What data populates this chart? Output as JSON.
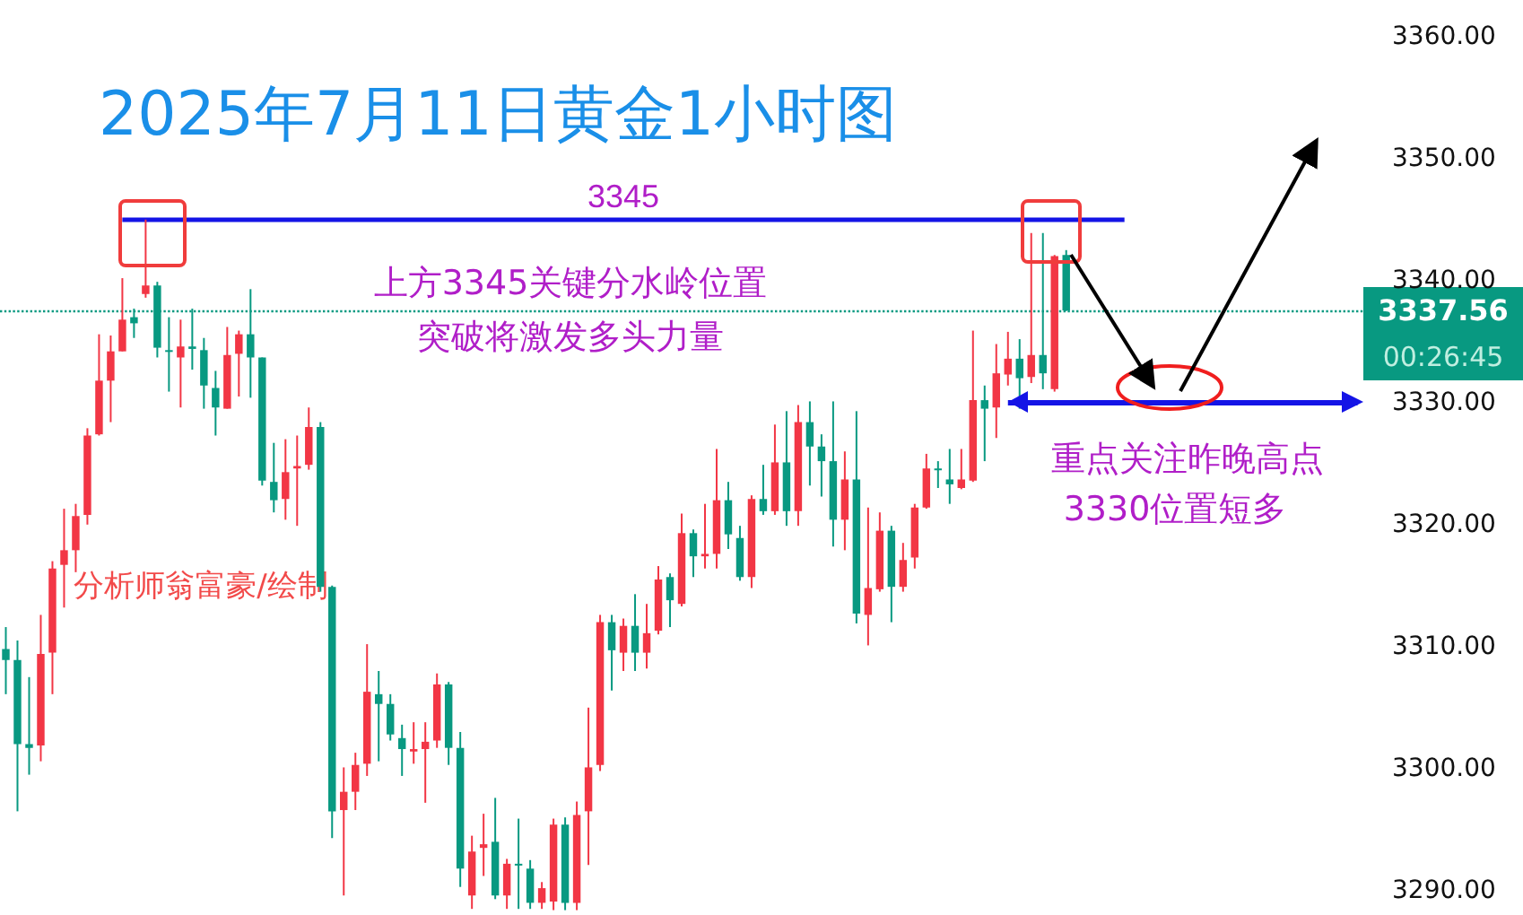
{
  "chart_data": {
    "type": "candlestick",
    "title": "2025年7月11日黄金1小时图",
    "categories": [
      null,
      null,
      null,
      null,
      null,
      null,
      null,
      null,
      null,
      null,
      null,
      null,
      null,
      null,
      null,
      null,
      null,
      null,
      null,
      null,
      null,
      null,
      null,
      null,
      null,
      null,
      null,
      null,
      null,
      null,
      null,
      null,
      null,
      null,
      null,
      null,
      null,
      null,
      null,
      null,
      null,
      null,
      null,
      null,
      null,
      null,
      null,
      null,
      null,
      null,
      null,
      null,
      null,
      null,
      null,
      null,
      null,
      null,
      null,
      null,
      null,
      null,
      null,
      null,
      null,
      null,
      null,
      null,
      null,
      null,
      null,
      null,
      null,
      null,
      null,
      null,
      null,
      null,
      null,
      null,
      null,
      null,
      null,
      null,
      null,
      null,
      null,
      null,
      null,
      null,
      null,
      null,
      null,
      null,
      null,
      null,
      null,
      null,
      null,
      null,
      null,
      null,
      null,
      null,
      null,
      null,
      null,
      null,
      null,
      null,
      null,
      null,
      null,
      null,
      null,
      null,
      null
    ],
    "ohlc": [
      [
        3309.8,
        3311.6,
        3306.1,
        3308.9
      ],
      [
        3308.9,
        3310.5,
        3296.5,
        3302.0
      ],
      [
        3302.0,
        3307.5,
        3299.5,
        3301.7
      ],
      [
        3301.9,
        3312.6,
        3300.6,
        3309.4
      ],
      [
        3309.5,
        3317.0,
        3306.1,
        3316.4
      ],
      [
        3316.7,
        3321.3,
        3313.2,
        3317.9
      ],
      [
        3317.9,
        3321.7,
        3316.1,
        3320.7
      ],
      [
        3320.8,
        3327.9,
        3320.0,
        3327.3
      ],
      [
        3327.4,
        3335.6,
        3327.3,
        3331.8
      ],
      [
        3331.8,
        3335.5,
        3328.4,
        3334.2
      ],
      [
        3334.2,
        3340.2,
        3334.2,
        3336.8
      ],
      [
        3337.0,
        3337.7,
        3335.3,
        3336.5
      ],
      [
        3338.9,
        3345.0,
        3338.6,
        3339.6
      ],
      [
        3339.6,
        3339.9,
        3333.7,
        3334.5
      ],
      [
        3334.3,
        3337.0,
        3330.9,
        3334.2
      ],
      [
        3333.7,
        3336.8,
        3329.6,
        3334.6
      ],
      [
        3334.6,
        3337.7,
        3332.7,
        3334.4
      ],
      [
        3334.3,
        3335.3,
        3329.5,
        3331.4
      ],
      [
        3331.2,
        3332.6,
        3327.3,
        3329.6
      ],
      [
        3329.5,
        3336.2,
        3329.5,
        3333.9
      ],
      [
        3334.0,
        3335.9,
        3330.5,
        3335.6
      ],
      [
        3335.6,
        3339.3,
        3330.4,
        3333.7
      ],
      [
        3333.7,
        3333.7,
        3323.2,
        3323.6
      ],
      [
        3323.5,
        3326.7,
        3321.0,
        3322.0
      ],
      [
        3322.1,
        3327.0,
        3320.4,
        3324.3
      ],
      [
        3324.6,
        3327.3,
        3319.9,
        3324.8
      ],
      [
        3324.9,
        3329.6,
        3324.5,
        3328.0
      ],
      [
        3328.0,
        3328.4,
        3314.5,
        3314.9
      ],
      [
        3314.9,
        3315.0,
        3294.3,
        3296.5
      ],
      [
        3296.6,
        3300.1,
        3289.6,
        3298.1
      ],
      [
        3298.1,
        3301.3,
        3296.6,
        3300.3
      ],
      [
        3300.4,
        3310.2,
        3299.4,
        3306.3
      ],
      [
        3306.1,
        3308.0,
        3300.6,
        3305.3
      ],
      [
        3305.3,
        3306.1,
        3302.3,
        3302.8
      ],
      [
        3302.5,
        3303.6,
        3299.4,
        3301.6
      ],
      [
        3301.4,
        3303.8,
        3300.4,
        3301.6
      ],
      [
        3301.6,
        3303.8,
        3297.2,
        3302.2
      ],
      [
        3302.3,
        3307.8,
        3301.7,
        3306.9
      ],
      [
        3306.9,
        3307.1,
        3300.3,
        3301.7
      ],
      [
        3301.7,
        3303.0,
        3290.3,
        3291.8
      ],
      [
        3289.6,
        3294.5,
        3288.5,
        3293.2
      ],
      [
        3293.5,
        3296.3,
        3291.2,
        3293.8
      ],
      [
        3294.0,
        3297.6,
        3289.3,
        3289.6
      ],
      [
        3289.6,
        3292.6,
        3288.5,
        3292.2
      ],
      [
        3292.2,
        3295.9,
        3288.5,
        3292.1
      ],
      [
        3291.8,
        3292.5,
        3288.5,
        3289.0
      ],
      [
        3289.0,
        3290.7,
        3288.5,
        3290.2
      ],
      [
        3289.1,
        3295.9,
        3288.4,
        3295.4
      ],
      [
        3295.4,
        3296.0,
        3288.4,
        3289.0
      ],
      [
        3289.0,
        3297.3,
        3288.4,
        3296.2
      ],
      [
        3296.5,
        3305.0,
        3292.1,
        3300.1
      ],
      [
        3300.3,
        3312.6,
        3299.8,
        3312.0
      ],
      [
        3312.0,
        3312.6,
        3306.4,
        3309.7
      ],
      [
        3309.5,
        3312.3,
        3308.0,
        3311.7
      ],
      [
        3311.7,
        3314.3,
        3308.0,
        3309.5
      ],
      [
        3309.5,
        3313.5,
        3308.2,
        3311.1
      ],
      [
        3311.3,
        3316.6,
        3311.0,
        3315.5
      ],
      [
        3315.7,
        3316.0,
        3311.6,
        3313.8
      ],
      [
        3313.5,
        3320.9,
        3313.3,
        3319.3
      ],
      [
        3319.3,
        3319.6,
        3315.7,
        3317.4
      ],
      [
        3317.4,
        3321.7,
        3316.4,
        3317.6
      ],
      [
        3317.6,
        3326.2,
        3316.4,
        3322.0
      ],
      [
        3322.0,
        3323.5,
        3318.0,
        3319.2
      ],
      [
        3318.9,
        3319.9,
        3315.4,
        3315.7
      ],
      [
        3315.7,
        3322.4,
        3314.8,
        3322.1
      ],
      [
        3322.1,
        3324.9,
        3320.8,
        3321.1
      ],
      [
        3321.1,
        3328.2,
        3320.8,
        3325.1
      ],
      [
        3325.1,
        3329.3,
        3319.9,
        3321.1
      ],
      [
        3321.1,
        3329.8,
        3319.9,
        3328.4
      ],
      [
        3328.4,
        3330.1,
        3323.2,
        3326.4
      ],
      [
        3326.4,
        3327.4,
        3322.3,
        3325.2
      ],
      [
        3325.2,
        3330.1,
        3318.2,
        3320.4
      ],
      [
        3320.4,
        3326.0,
        3317.9,
        3323.7
      ],
      [
        3323.7,
        3329.3,
        3311.9,
        3312.7
      ],
      [
        3312.6,
        3321.4,
        3310.1,
        3314.8
      ],
      [
        3314.7,
        3321.0,
        3314.5,
        3319.5
      ],
      [
        3319.5,
        3319.9,
        3312.0,
        3314.9
      ],
      [
        3314.9,
        3318.5,
        3314.5,
        3317.1
      ],
      [
        3317.3,
        3321.7,
        3316.4,
        3321.4
      ],
      [
        3321.4,
        3325.8,
        3321.3,
        3324.6
      ],
      [
        3324.6,
        3325.2,
        3323.0,
        3324.5
      ],
      [
        3323.7,
        3326.2,
        3321.7,
        3323.3
      ],
      [
        3323.0,
        3326.2,
        3322.9,
        3323.7
      ],
      [
        3323.6,
        3335.9,
        3323.5,
        3330.2
      ],
      [
        3330.2,
        3331.4,
        3325.2,
        3329.5
      ],
      [
        3329.6,
        3334.8,
        3327.1,
        3332.4
      ],
      [
        3332.3,
        3335.8,
        3331.4,
        3333.6
      ],
      [
        3333.6,
        3335.2,
        3329.5,
        3332.0
      ],
      [
        3332.1,
        3343.9,
        3331.6,
        3333.9
      ],
      [
        3333.9,
        3343.9,
        3331.1,
        3332.4
      ],
      [
        3331.1,
        3342.1,
        3330.9,
        3342.0
      ],
      [
        3342.1,
        3342.5,
        3337.5,
        3337.56
      ],
      null,
      null,
      null,
      null,
      null,
      null,
      null,
      null,
      null,
      null,
      null,
      null,
      null,
      null,
      null,
      null,
      null,
      null,
      null,
      null,
      null,
      null,
      null,
      null,
      null
    ],
    "ylim": [
      3288,
      3363
    ],
    "yticks": [
      {
        "value": 3290,
        "label": "3290.00"
      },
      {
        "value": 3300,
        "label": "3300.00"
      },
      {
        "value": 3310,
        "label": "3310.00"
      },
      {
        "value": 3320,
        "label": "3320.00"
      },
      {
        "value": 3330,
        "label": "3330.00"
      },
      {
        "value": 3340,
        "label": "3340.00"
      },
      {
        "value": 3350,
        "label": "3350.00"
      },
      {
        "value": 3360,
        "label": "3360.00"
      }
    ],
    "grid": false,
    "ref_lines": [
      {
        "axis": "y",
        "value": 3345,
        "label": "3345",
        "color": "#1414e6"
      },
      {
        "axis": "y",
        "value": 3330,
        "color": "#1414e6"
      },
      {
        "axis": "y",
        "value": 3337.56,
        "label": "3337.56",
        "color": "#089981",
        "line_style": "dotted"
      }
    ],
    "annotations": [
      "上方3345关键分水岭位置",
      "突破将激发多头力量",
      "分析师翁富豪/绘制",
      "重点关注昨晚高点",
      "3330位置短多",
      "00:26:45"
    ]
  }
}
